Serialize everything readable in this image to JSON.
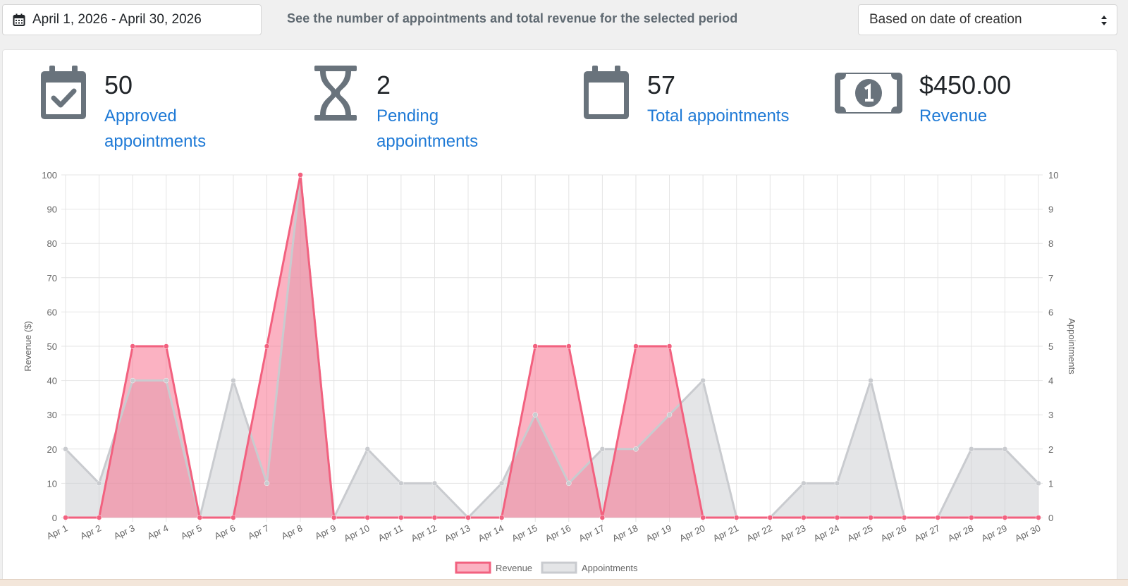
{
  "toolbar": {
    "date_range": "April 1, 2026 - April 30, 2026",
    "hint": "See the number of appointments and total revenue for the selected period",
    "filter_selected": "Based on date of creation"
  },
  "stats": {
    "approved": {
      "value": "50",
      "label_line1": "Approved",
      "label_line2": "appointments"
    },
    "pending": {
      "value": "2",
      "label_line1": "Pending",
      "label_line2": "appointments"
    },
    "total": {
      "value": "57",
      "label": "Total appointments"
    },
    "revenue": {
      "value": "$450.00",
      "label": "Revenue"
    }
  },
  "colors": {
    "revenue_line": "#f2617f",
    "revenue_fill": "rgba(247,102,134,0.5)",
    "appointments_line": "#c9cbcf",
    "appointments_fill": "rgba(201,203,207,0.5)",
    "link": "#1f7ad6",
    "icon": "#69737c"
  },
  "chart_data": {
    "type": "line",
    "filled": true,
    "x": [
      "Apr 1",
      "Apr 2",
      "Apr 3",
      "Apr 4",
      "Apr 5",
      "Apr 6",
      "Apr 7",
      "Apr 8",
      "Apr 9",
      "Apr 10",
      "Apr 11",
      "Apr 12",
      "Apr 13",
      "Apr 14",
      "Apr 15",
      "Apr 16",
      "Apr 17",
      "Apr 18",
      "Apr 19",
      "Apr 20",
      "Apr 21",
      "Apr 22",
      "Apr 23",
      "Apr 24",
      "Apr 25",
      "Apr 26",
      "Apr 27",
      "Apr 28",
      "Apr 29",
      "Apr 30"
    ],
    "series": [
      {
        "name": "Revenue",
        "axis": "left",
        "values": [
          0,
          0,
          50,
          50,
          0,
          0,
          50,
          100,
          0,
          0,
          0,
          0,
          0,
          0,
          50,
          50,
          0,
          50,
          50,
          0,
          0,
          0,
          0,
          0,
          0,
          0,
          0,
          0,
          0,
          0
        ]
      },
      {
        "name": "Appointments",
        "axis": "right",
        "values": [
          2,
          1,
          4,
          4,
          0,
          4,
          1,
          10,
          0,
          2,
          1,
          1,
          0,
          1,
          3,
          1,
          2,
          2,
          3,
          4,
          0,
          0,
          1,
          1,
          4,
          0,
          0,
          2,
          2,
          1
        ]
      }
    ],
    "ylabel": "Revenue ($)",
    "y2label": "Appointments",
    "ylim": [
      0,
      100
    ],
    "y2lim": [
      0,
      10
    ],
    "yticks": [
      0,
      10,
      20,
      30,
      40,
      50,
      60,
      70,
      80,
      90,
      100
    ],
    "y2ticks": [
      0,
      1,
      2,
      3,
      4,
      5,
      6,
      7,
      8,
      9,
      10
    ],
    "grid": true,
    "legend": "bottom"
  }
}
